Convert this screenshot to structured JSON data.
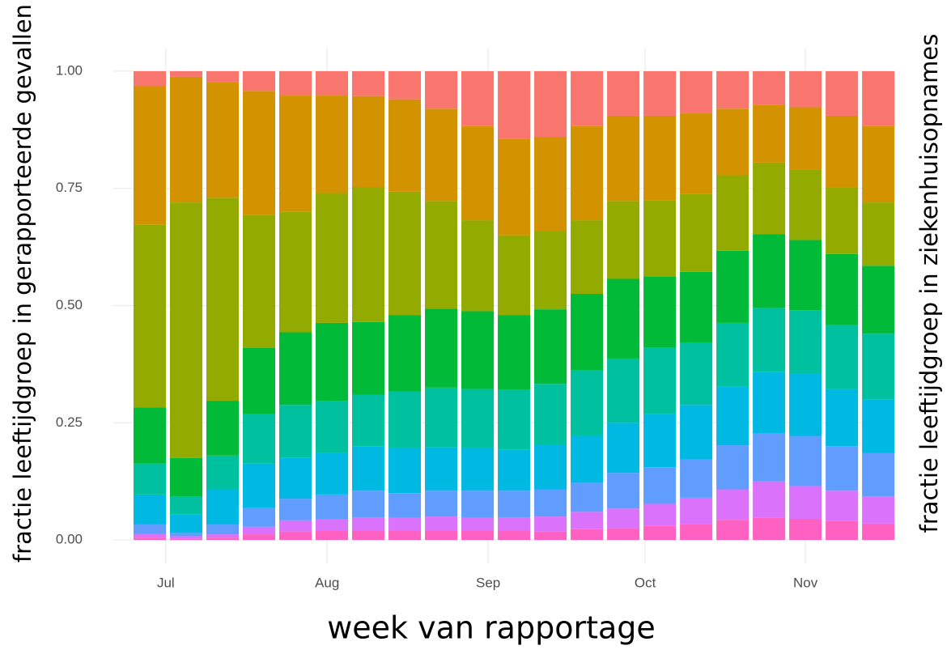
{
  "chart_data": {
    "type": "stacked_bar",
    "x_label": "week van rapportage",
    "y_label": "fractie leeftijdgroep in gerapporteerde gevallen",
    "y2_label": "fractie leeftijdgroep in ziekenhuisopnames",
    "categories": [
      null,
      null,
      null,
      null,
      null,
      null,
      null,
      null,
      null,
      null,
      null,
      null,
      null,
      null,
      null,
      null,
      null,
      null,
      null,
      null,
      null
    ],
    "xlim": [
      -1,
      20.33
    ],
    "xticks": [
      {
        "value": 0.44,
        "label": "Jul"
      },
      {
        "value": 4.87,
        "label": "Aug"
      },
      {
        "value": 9.29,
        "label": "Sep"
      },
      {
        "value": 13.6,
        "label": "Oct"
      },
      {
        "value": 18.0,
        "label": "Nov"
      }
    ],
    "ylim": [
      -0.05,
      1.05
    ],
    "yticks": [
      {
        "value": 0,
        "label": "0.00"
      },
      {
        "value": 0.25,
        "label": "0.25"
      },
      {
        "value": 0.5,
        "label": "0.50"
      },
      {
        "value": 0.75,
        "label": "0.75"
      },
      {
        "value": 1,
        "label": "1.00"
      }
    ],
    "grid": true,
    "series": [
      {
        "color": "#FF61C3",
        "values": [
          0.005,
          0.003,
          0.005,
          0.012,
          0.018,
          0.02,
          0.02,
          0.02,
          0.02,
          0.02,
          0.02,
          0.018,
          0.023,
          0.025,
          0.03,
          0.033,
          0.043,
          0.048,
          0.045,
          0.04,
          0.035
        ]
      },
      {
        "color": "#DB72FB",
        "values": [
          0.008,
          0.005,
          0.007,
          0.016,
          0.024,
          0.025,
          0.028,
          0.027,
          0.03,
          0.027,
          0.028,
          0.032,
          0.037,
          0.042,
          0.047,
          0.057,
          0.065,
          0.077,
          0.07,
          0.065,
          0.058
        ]
      },
      {
        "color": "#619CFF",
        "values": [
          0.02,
          0.007,
          0.021,
          0.04,
          0.046,
          0.052,
          0.057,
          0.053,
          0.055,
          0.058,
          0.057,
          0.058,
          0.062,
          0.076,
          0.078,
          0.082,
          0.094,
          0.103,
          0.107,
          0.095,
          0.092
        ]
      },
      {
        "color": "#00B9E3",
        "values": [
          0.064,
          0.04,
          0.075,
          0.095,
          0.087,
          0.088,
          0.095,
          0.097,
          0.093,
          0.092,
          0.088,
          0.095,
          0.1,
          0.107,
          0.113,
          0.116,
          0.126,
          0.13,
          0.133,
          0.122,
          0.115
        ]
      },
      {
        "color": "#00C19F",
        "values": [
          0.066,
          0.037,
          0.072,
          0.105,
          0.113,
          0.112,
          0.11,
          0.12,
          0.127,
          0.125,
          0.127,
          0.13,
          0.14,
          0.137,
          0.142,
          0.132,
          0.135,
          0.137,
          0.135,
          0.136,
          0.14
        ]
      },
      {
        "color": "#00BA38",
        "values": [
          0.12,
          0.083,
          0.117,
          0.142,
          0.155,
          0.166,
          0.155,
          0.163,
          0.168,
          0.166,
          0.16,
          0.159,
          0.163,
          0.17,
          0.152,
          0.152,
          0.154,
          0.157,
          0.15,
          0.152,
          0.145
        ]
      },
      {
        "color": "#93AA00",
        "values": [
          0.39,
          0.545,
          0.433,
          0.283,
          0.257,
          0.277,
          0.288,
          0.263,
          0.23,
          0.194,
          0.17,
          0.166,
          0.157,
          0.166,
          0.163,
          0.166,
          0.161,
          0.153,
          0.15,
          0.142,
          0.135
        ]
      },
      {
        "color": "#D39200",
        "values": [
          0.295,
          0.268,
          0.247,
          0.265,
          0.248,
          0.208,
          0.194,
          0.197,
          0.197,
          0.201,
          0.205,
          0.202,
          0.201,
          0.182,
          0.18,
          0.172,
          0.142,
          0.123,
          0.133,
          0.153,
          0.163
        ]
      },
      {
        "color": "#F8766D",
        "values": [
          0.032,
          0.012,
          0.023,
          0.042,
          0.052,
          0.052,
          0.053,
          0.06,
          0.08,
          0.117,
          0.145,
          0.14,
          0.117,
          0.095,
          0.095,
          0.09,
          0.08,
          0.072,
          0.077,
          0.095,
          0.117
        ]
      }
    ]
  }
}
